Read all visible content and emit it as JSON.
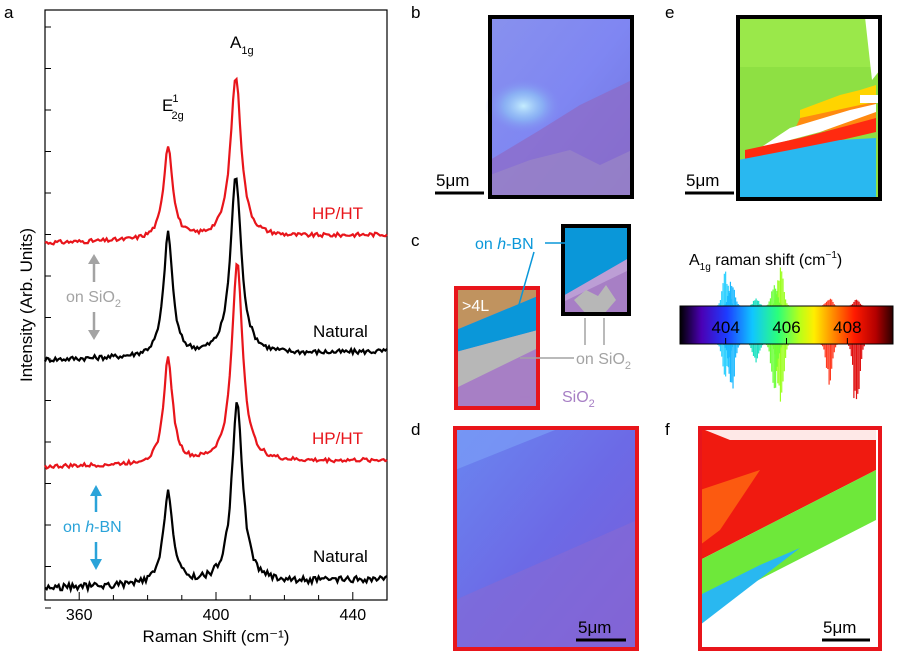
{
  "panels": {
    "a": "a",
    "b": "b",
    "c": "c",
    "d": "d",
    "e": "e",
    "f": "f"
  },
  "colors": {
    "red": "#e8151b",
    "black": "#000000",
    "gray": "#a3a3a3",
    "blue": "#2aa3d9",
    "hbn": "#0a97d9",
    "sio2": "#a77fc5",
    "multilayer": "#c0935f",
    "bare_sio2_gray": "#b7b7b7"
  },
  "chart_data": {
    "type": "line",
    "xlabel": "Raman Shift (cm⁻¹)",
    "ylabel": "Intensity (Arb. Units)",
    "xlim": [
      350,
      450
    ],
    "xticks": [
      "360",
      "400",
      "440"
    ],
    "xtick_values": [
      360,
      400,
      440
    ],
    "peaks": [
      {
        "base": "E",
        "sup": "1",
        "sub": "2g",
        "position": 386
      },
      {
        "base": "A",
        "sub": "1g",
        "position": 406
      }
    ],
    "series": [
      {
        "name": "HP/HT",
        "color": "#e8151b",
        "e2g": 386,
        "a1g": 405.8,
        "e2g_height": 0.55,
        "a1g_height": 0.95,
        "baseline": 0.0,
        "tilt": 0.05,
        "noise": 0.012
      },
      {
        "name": "Natural",
        "color": "#000000",
        "e2g": 386,
        "a1g": 405.8,
        "e2g_height": 0.72,
        "a1g_height": 1.05,
        "baseline": 0.0,
        "tilt": 0.05,
        "noise": 0.015
      },
      {
        "name": "HP/HT",
        "color": "#e8151b",
        "e2g": 386,
        "a1g": 406.2,
        "e2g_height": 0.62,
        "a1g_height": 1.18,
        "baseline": 0.0,
        "tilt": 0.04,
        "noise": 0.012
      },
      {
        "name": "Natural",
        "color": "#000000",
        "e2g": 386,
        "a1g": 406.2,
        "e2g_height": 0.55,
        "a1g_height": 1.07,
        "baseline": 0.0,
        "tilt": 0.05,
        "noise": 0.02
      }
    ],
    "substrate_labels": [
      {
        "prefix": "on ",
        "emph": "",
        "main": "SiO",
        "sub": "2",
        "color": "#a3a3a3"
      },
      {
        "prefix": "on ",
        "emph": "h",
        "main": "-BN",
        "sub": "",
        "color": "#2aa3d9"
      }
    ]
  },
  "schematic": {
    "multilayer": ">4L",
    "hbn_prefix": "on ",
    "hbn_emph": "h",
    "hbn_main": "-BN",
    "on_sio2_prefix": "on SiO",
    "on_sio2_sub": "2",
    "sio2_main": "SiO",
    "sio2_sub": "2"
  },
  "scalebars": {
    "b": "5μm",
    "d": "5μm",
    "e": "5μm",
    "f": "5μm"
  },
  "colorbar": {
    "title_base": "A",
    "title_sub": "1g",
    "title_rest": " raman shift (cm",
    "title_sup": "−1",
    "title_end": ")",
    "ticks": [
      "404",
      "406",
      "408"
    ],
    "tick_values": [
      404,
      406,
      408
    ],
    "range": [
      402.5,
      409.5
    ]
  }
}
